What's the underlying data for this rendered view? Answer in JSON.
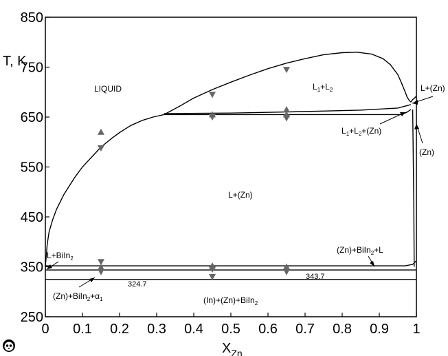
{
  "chart_data": {
    "type": "line",
    "title": "",
    "xlabel_main": "X",
    "xlabel_sub": "Zn",
    "ylabel": "T, K",
    "xlim": [
      0,
      1
    ],
    "ylim": [
      250,
      850
    ],
    "x_ticks": [
      0,
      0.1,
      0.2,
      0.3,
      0.4,
      0.5,
      0.6,
      0.7,
      0.8,
      0.9,
      1
    ],
    "x_tick_labels": [
      "0",
      "0.1",
      "0.2",
      "0.3",
      "0.4",
      "0.5",
      "0.6",
      "0.7",
      "0.8",
      "0.9",
      "1"
    ],
    "y_ticks": [
      250,
      350,
      450,
      550,
      650,
      750,
      850
    ],
    "y_tick_labels": [
      "250",
      "350",
      "450",
      "550",
      "650",
      "750",
      "850"
    ],
    "grid": false,
    "series": [
      {
        "key": "liquidus",
        "x": [
          0.0,
          0.005,
          0.01,
          0.02,
          0.03,
          0.05,
          0.08,
          0.1,
          0.13,
          0.15,
          0.18,
          0.2,
          0.23,
          0.26,
          0.29,
          0.32
        ],
        "y": [
          350,
          395,
          420,
          445,
          465,
          495,
          530,
          550,
          574,
          590,
          608,
          619,
          633,
          643,
          650,
          655
        ]
      },
      {
        "key": "miscibility_gap",
        "x": [
          0.32,
          0.36,
          0.4,
          0.45,
          0.5,
          0.55,
          0.6,
          0.65,
          0.7,
          0.75,
          0.8,
          0.84,
          0.88,
          0.91,
          0.93,
          0.95,
          0.96,
          0.97,
          0.975,
          0.98,
          0.985
        ],
        "y": [
          655,
          671,
          688,
          705,
          720,
          734,
          747,
          758,
          767,
          775,
          779,
          780,
          776,
          767,
          755,
          735,
          718,
          700,
          690,
          684,
          680
        ]
      },
      {
        "key": "monotectic",
        "x": [
          0.32,
          0.96,
          0.975,
          0.985
        ],
        "y": [
          655,
          655,
          660,
          665
        ]
      },
      {
        "key": "l1_l2_zn_lower",
        "x": [
          0.32,
          0.5,
          0.7,
          0.85,
          0.95,
          0.985
        ],
        "y": [
          657,
          658,
          661,
          664,
          668,
          675
        ]
      },
      {
        "key": "zn_liquidus_right",
        "x": [
          0.985,
          0.99,
          0.995,
          1.0
        ],
        "y": [
          680,
          685,
          688,
          692
        ]
      },
      {
        "key": "zn_solvus",
        "x": [
          0.99,
          0.993,
          0.994
        ],
        "y": [
          665,
          480,
          350
        ]
      },
      {
        "key": "eutectic_upper",
        "x": [
          0.0,
          0.97,
          0.99,
          1.0
        ],
        "y": [
          352,
          352,
          355,
          362
        ]
      },
      {
        "key": "eutectic_343",
        "x": [
          0.0,
          1.0
        ],
        "y": [
          343.7,
          343.7
        ]
      },
      {
        "key": "eutectic_324",
        "x": [
          0.0,
          1.0
        ],
        "y": [
          324.7,
          324.7
        ]
      }
    ],
    "markers_down": {
      "x": [
        0.15,
        0.15,
        0.15,
        0.45,
        0.45,
        0.45,
        0.45,
        0.65,
        0.65,
        0.65,
        0.65
      ],
      "y": [
        588,
        360,
        340,
        695,
        650,
        345,
        330,
        745,
        648,
        348,
        340
      ]
    },
    "markers_up": {
      "x": [
        0.15,
        0.15,
        0.45,
        0.45,
        0.65,
        0.65,
        0.65
      ],
      "y": [
        620,
        349,
        655,
        352,
        665,
        655,
        350
      ]
    },
    "annotations": {
      "liquid": "LIQUID",
      "l1l2_a": "L",
      "l1l2_a_sub": "1",
      "l1l2_plus": "+L",
      "l1l2_b_sub": "2",
      "l1l2zn_a": "L",
      "l1l2zn_a_sub": "1",
      "l1l2zn_mid": "+L",
      "l1l2zn_b_sub": "2",
      "l1l2zn_tail": "+(Zn)",
      "l_zn_top": "L+(Zn)",
      "zn": "(Zn)",
      "l_zn_mid": "L+(Zn)",
      "l_biin2": "L+BiIn",
      "l_biin2_sub": "2",
      "zn_biin2_l": "(Zn)+BiIn",
      "zn_biin2_l_sub": "2",
      "zn_biin2_l_tail": "+L",
      "zn_biin2_alpha": "(Zn)+BiIn",
      "zn_biin2_alpha_sub": "2",
      "zn_biin2_alpha_mid": "+α",
      "zn_biin2_alpha_sub2": "1",
      "t3247": "324.7",
      "t3437": "343.7",
      "in_zn_biin2": "(In)+(Zn)+BiIn",
      "in_zn_biin2_sub": "2"
    },
    "colors": {
      "line": "#000000",
      "marker": "#666666"
    }
  }
}
